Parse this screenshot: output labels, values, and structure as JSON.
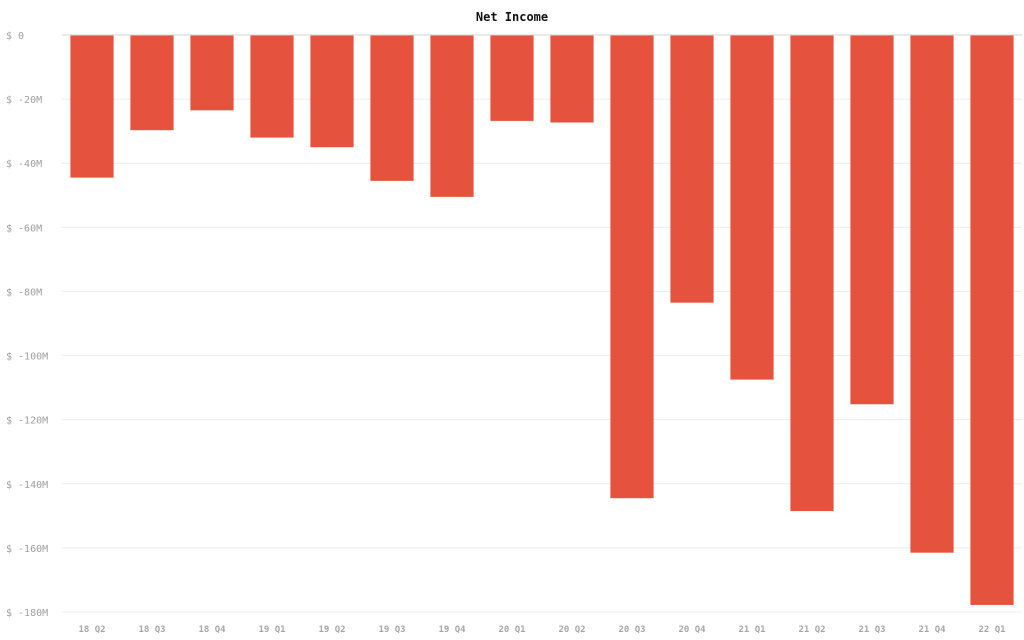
{
  "chart_data": {
    "type": "bar",
    "title": "Net Income",
    "xlabel": "",
    "ylabel": "",
    "categories": [
      "18 Q2",
      "18 Q3",
      "18 Q4",
      "19 Q1",
      "19 Q2",
      "19 Q3",
      "19 Q4",
      "20 Q1",
      "20 Q2",
      "20 Q3",
      "20 Q4",
      "21 Q1",
      "21 Q2",
      "21 Q3",
      "21 Q4",
      "22 Q1"
    ],
    "values": [
      -44.5,
      -29.7,
      -23.5,
      -32.0,
      -35.0,
      -45.5,
      -50.5,
      -26.8,
      -27.3,
      -144.5,
      -83.5,
      -107.5,
      -148.5,
      -115.2,
      -161.5,
      -177.8
    ],
    "unit": "M",
    "ylim": [
      -180,
      0
    ],
    "yticks": [
      0,
      -20,
      -40,
      -60,
      -80,
      -100,
      -120,
      -140,
      -160,
      -180
    ],
    "ytick_labels": [
      "$ 0",
      "$ -20M",
      "$ -40M",
      "$ -60M",
      "$ -80M",
      "$ -100M",
      "$ -120M",
      "$ -140M",
      "$ -160M",
      "$ -180M"
    ],
    "grid": true,
    "bar_color": "#e5533f"
  }
}
